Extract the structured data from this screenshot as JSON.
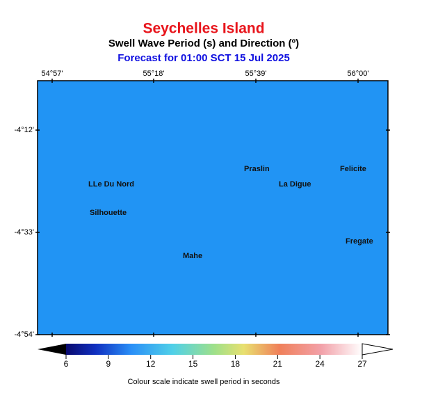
{
  "header": {
    "title": "Seychelles Island",
    "subtitle": "Swell Wave Period (s) and Direction (º)",
    "forecast": "Forecast for  01:00 SCT 15 Jul 2025"
  },
  "map": {
    "lon_ticks": [
      "54°57'",
      "55°18'",
      "55°39'",
      "56°00'"
    ],
    "lat_ticks": [
      "-4°12'",
      "-4°33'",
      "-4°54'"
    ],
    "places": [
      "LLe Du Nord",
      "Silhouette",
      "Mahe",
      "Praslin",
      "La Digue",
      "Felicite",
      "Fregate"
    ]
  },
  "colorbar": {
    "ticks": [
      6,
      9,
      12,
      15,
      18,
      21,
      24,
      27
    ],
    "caption": "Colour scale indicate swell period in seconds"
  }
}
